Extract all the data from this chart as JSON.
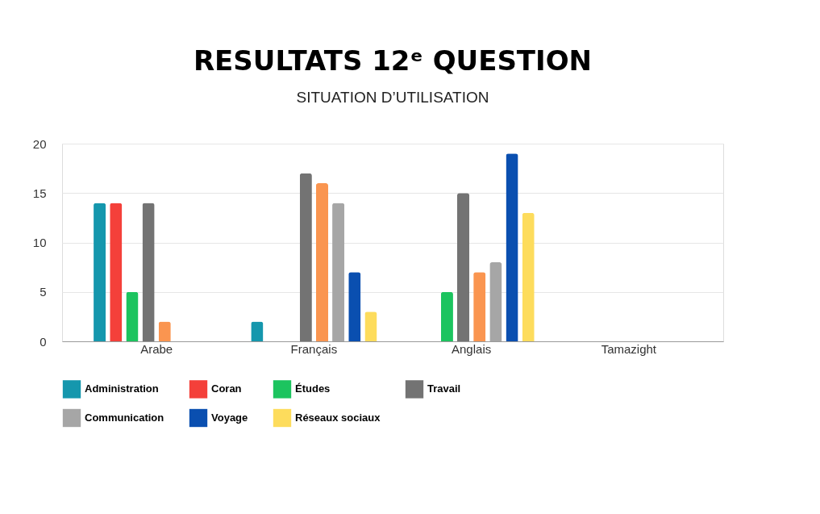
{
  "chart_data": {
    "type": "bar",
    "title": "RESULTATS 12ᵉ QUESTION",
    "subtitle": "SITUATION D’UTILISATION",
    "categories": [
      "Arabe",
      "Français",
      "Anglais",
      "Tamazight"
    ],
    "series": [
      {
        "name": "Administration",
        "color": "#1597ad",
        "values": [
          14,
          2,
          0,
          0
        ]
      },
      {
        "name": "Coran",
        "color": "#f4403a",
        "values": [
          14,
          0,
          0,
          0
        ]
      },
      {
        "name": "Études",
        "color": "#1cc45f",
        "values": [
          5,
          0,
          5,
          0
        ]
      },
      {
        "name": "Travail",
        "color": "#737373",
        "values": [
          14,
          17,
          15,
          0
        ]
      },
      {
        "color": "#fa9550",
        "values": [
          2,
          16,
          7,
          0
        ]
      },
      {
        "name": "Communication",
        "color": "#a6a6a6",
        "values": [
          0,
          14,
          8,
          0
        ]
      },
      {
        "name": "Voyage",
        "color": "#0a4fb0",
        "values": [
          0,
          7,
          19,
          0
        ]
      },
      {
        "name": "Réseaux sociaux",
        "color": "#fddc5c",
        "values": [
          0,
          3,
          13,
          0
        ]
      }
    ],
    "ylim": [
      0,
      20
    ],
    "yticks": [
      0,
      5,
      10,
      15,
      20
    ],
    "grid": "y",
    "legend": "bottom"
  }
}
